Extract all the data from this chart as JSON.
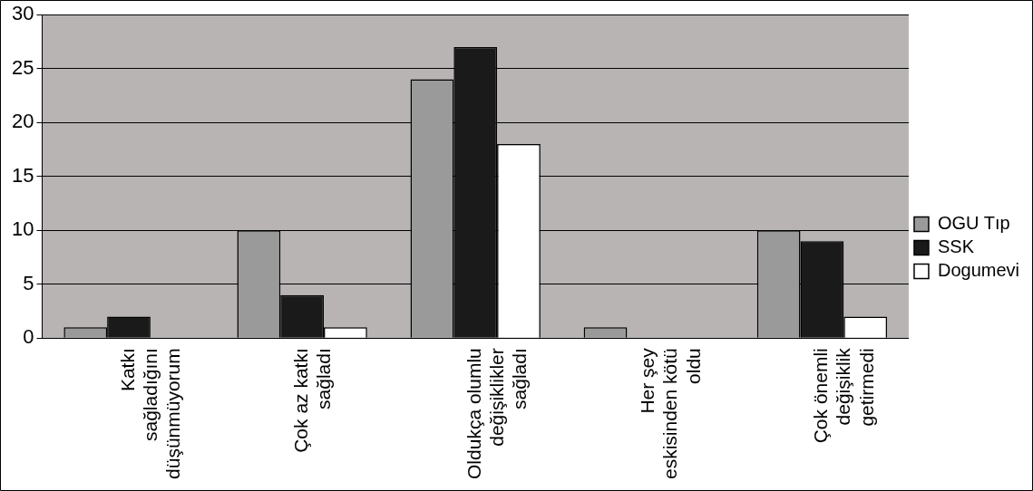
{
  "chart_data": {
    "type": "bar",
    "categories": [
      "Katkı\nsağladığını\ndüşünmüyorum",
      "Çok az katkı\nsağladı",
      "Oldukça olumlu\ndeğişiklikler\nsağladı",
      "Her şey\neskisinden kötü\noldu",
      "Çok önemli\ndeğişiklik\ngetirmedi"
    ],
    "series": [
      {
        "name": "OGU Tıp",
        "color": "#9a9a9a",
        "values": [
          1,
          10,
          24,
          1,
          10
        ]
      },
      {
        "name": "SSK",
        "color": "#1a1a1a",
        "values": [
          2,
          4,
          27,
          0,
          9
        ]
      },
      {
        "name": "Dogumevi",
        "color": "#ffffff",
        "values": [
          0,
          1,
          18,
          0,
          2
        ]
      }
    ],
    "ylim": [
      0,
      30
    ],
    "yticks": [
      0,
      5,
      10,
      15,
      20,
      25,
      30
    ],
    "grid": "y",
    "legend": "right"
  }
}
